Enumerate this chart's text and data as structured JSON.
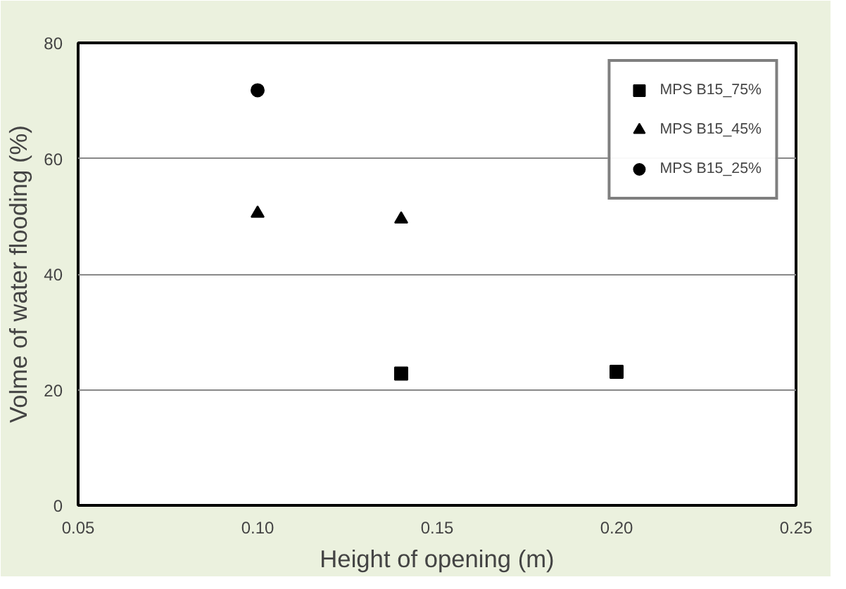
{
  "chart_data": {
    "type": "scatter",
    "xlabel": "Height of opening (m)",
    "ylabel": "Volme of water flooding (%)",
    "xlim": [
      0.05,
      0.25
    ],
    "xticks": [
      {
        "value": 0.05,
        "label": "0.05"
      },
      {
        "value": 0.1,
        "label": "0.10"
      },
      {
        "value": 0.15,
        "label": "0.15"
      },
      {
        "value": 0.2,
        "label": "0.20"
      },
      {
        "value": 0.25,
        "label": "0.25"
      }
    ],
    "ylim": [
      0,
      80
    ],
    "yticks": [
      0,
      20,
      40,
      60,
      80
    ],
    "grid": "y",
    "legend": "top right",
    "series": [
      {
        "name": "MPS B15_75%",
        "color": "#000000",
        "marker": "square",
        "x": [
          0.14,
          0.2
        ],
        "values": [
          22.8,
          23.1
        ]
      },
      {
        "name": "MPS B15_45%",
        "color": "#000000",
        "marker": "triangle",
        "x": [
          0.1,
          0.14
        ],
        "values": [
          50.5,
          49.5
        ]
      },
      {
        "name": "MPS B15_25%",
        "color": "#000000",
        "marker": "circle",
        "x": [
          0.1
        ],
        "values": [
          71.8
        ]
      }
    ]
  }
}
